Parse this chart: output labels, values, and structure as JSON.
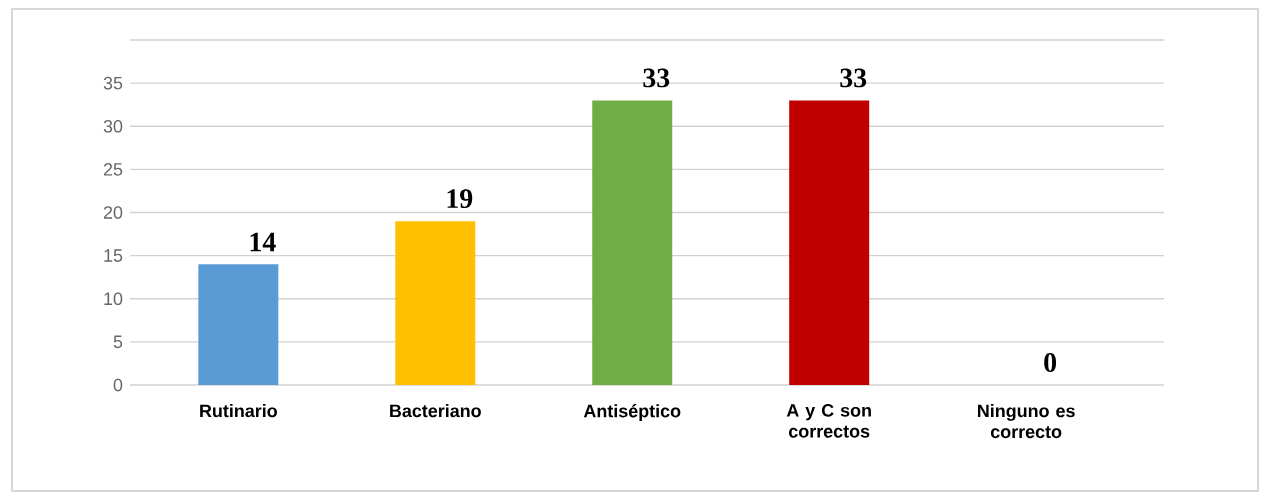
{
  "chart_data": {
    "type": "bar",
    "categories": [
      "Rutinario",
      "Bacteriano",
      "Antiséptico",
      "A y C son correctos",
      "Ninguno es correcto"
    ],
    "values": [
      14,
      19,
      33,
      33,
      0
    ],
    "colors": [
      "#5b9bd5",
      "#ffc000",
      "#70ad47",
      "#c00000",
      "#c55a11"
    ],
    "ylim": [
      0,
      40
    ],
    "yticks": [
      0,
      5,
      10,
      15,
      20,
      25,
      30,
      35,
      {
        "value": 40,
        "label": null
      }
    ],
    "grid": "y",
    "data_labels": true
  }
}
